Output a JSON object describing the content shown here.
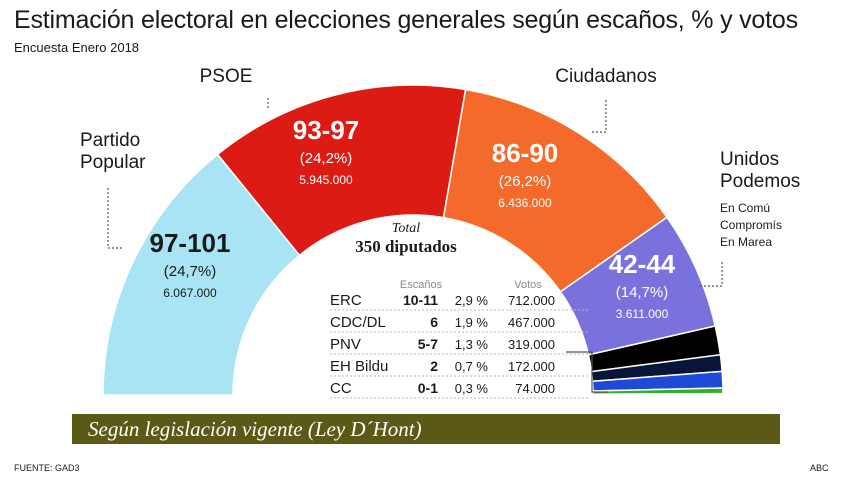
{
  "header": {
    "title": "Estimación electoral en elecciones generales según escaños, % y votos",
    "subtitle": "Encuesta Enero 2018"
  },
  "chart_data": {
    "type": "pie",
    "shape": "half-donut",
    "total_label": "Total",
    "total_value": "350 diputados",
    "series": [
      {
        "name_lines": [
          "Partido",
          "Popular"
        ],
        "seats": "97-101",
        "seats_mid": 99,
        "pct": "(24,7%)",
        "votes": "6.067.000",
        "color": "#a8e4f4"
      },
      {
        "name_lines": [
          "PSOE"
        ],
        "seats": "93-97",
        "seats_mid": 95,
        "pct": "(24,2%)",
        "votes": "5.945.000",
        "color": "#dc1c14"
      },
      {
        "name_lines": [
          "Ciudadanos"
        ],
        "seats": "86-90",
        "seats_mid": 88,
        "pct": "(26,2%)",
        "votes": "6.436.000",
        "color": "#f46a2a"
      },
      {
        "name_lines": [
          "Unidos",
          "Podemos"
        ],
        "sub_lines": [
          "En Comú",
          "Compromís",
          "En Marea"
        ],
        "seats": "42-44",
        "seats_mid": 43,
        "pct": "(14,7%)",
        "votes": "3.611.000",
        "color": "#7a72dc"
      }
    ],
    "minor_table": {
      "headers": {
        "seats": "Escaños",
        "votes": "Votos"
      },
      "rows": [
        {
          "party": "ERC",
          "seats": "10-11",
          "seats_mid": 10.5,
          "pct": "2,9 %",
          "votes": "712.000",
          "color": "#000000"
        },
        {
          "party": "CDC/DL",
          "seats": "6",
          "seats_mid": 6,
          "pct": "1,9 %",
          "votes": "467.000",
          "color": "#08143a"
        },
        {
          "party": "PNV",
          "seats": "5-7",
          "seats_mid": 6,
          "pct": "1,3 %",
          "votes": "319.000",
          "color": "#1f4ad8"
        },
        {
          "party": "EH Bildu",
          "seats": "2",
          "seats_mid": 2,
          "pct": "0,7 %",
          "votes": "172.000",
          "color": "#2fae2f"
        },
        {
          "party": "CC",
          "seats": "0-1",
          "seats_mid": 0.5,
          "pct": "0,3 %",
          "votes": "74.000",
          "color": "#e6e23a"
        }
      ]
    }
  },
  "banner": "Según legislación vigente (Ley D´Hont)",
  "footer": {
    "source": "FUENTE: GAD3",
    "credit": "ABC"
  }
}
